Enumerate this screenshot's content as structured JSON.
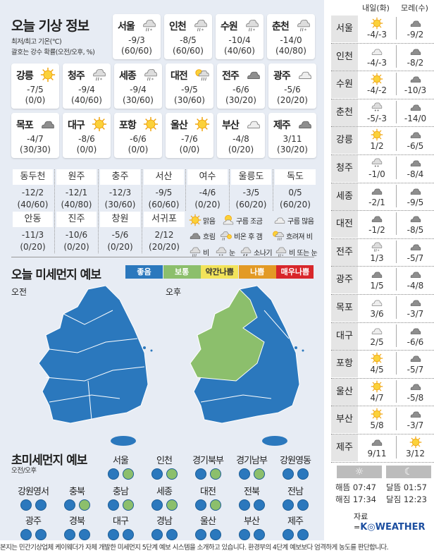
{
  "title": "오늘 기상 정보",
  "subtitle_1": "최저/최고 기온(℃)",
  "subtitle_2": "괄호는 강수 확률(오전/오후, %)",
  "cards": [
    {
      "name": "서울",
      "temp": "-9/3",
      "prob": "(60/60)",
      "icon": "rainsnow"
    },
    {
      "name": "인천",
      "temp": "-8/5",
      "prob": "(60/60)",
      "icon": "rainsnow"
    },
    {
      "name": "수원",
      "temp": "-10/4",
      "prob": "(40/60)",
      "icon": "rainsnow"
    },
    {
      "name": "춘천",
      "temp": "-14/0",
      "prob": "(40/80)",
      "icon": "rainsnow"
    },
    {
      "name": "강릉",
      "temp": "-7/5",
      "prob": "(0/0)",
      "icon": "sun"
    },
    {
      "name": "청주",
      "temp": "-9/4",
      "prob": "(40/60)",
      "icon": "rainsnow"
    },
    {
      "name": "세종",
      "temp": "-9/4",
      "prob": "(30/60)",
      "icon": "rainsnow"
    },
    {
      "name": "대전",
      "temp": "-9/5",
      "prob": "(30/60)",
      "icon": "sunrain"
    },
    {
      "name": "전주",
      "temp": "-6/6",
      "prob": "(30/20)",
      "icon": "cloud-dark"
    },
    {
      "name": "광주",
      "temp": "-5/6",
      "prob": "(20/20)",
      "icon": "cloud-light"
    },
    {
      "name": "목포",
      "temp": "-4/7",
      "prob": "(30/30)",
      "icon": "cloud-dark"
    },
    {
      "name": "대구",
      "temp": "-8/6",
      "prob": "(0/0)",
      "icon": "sun"
    },
    {
      "name": "포항",
      "temp": "-6/6",
      "prob": "(0/0)",
      "icon": "sun"
    },
    {
      "name": "울산",
      "temp": "-7/6",
      "prob": "(0/0)",
      "icon": "sun"
    },
    {
      "name": "부산",
      "temp": "-4/8",
      "prob": "(0/20)",
      "icon": "cloud-light"
    },
    {
      "name": "제주",
      "temp": "3/11",
      "prob": "(30/20)",
      "icon": "cloud-dark"
    }
  ],
  "small_cities": [
    {
      "name": "동두천",
      "temp": "-12/2",
      "prob": "(40/60)"
    },
    {
      "name": "원주",
      "temp": "-12/1",
      "prob": "(40/80)"
    },
    {
      "name": "충주",
      "temp": "-12/3",
      "prob": "(30/60)"
    },
    {
      "name": "서산",
      "temp": "-9/5",
      "prob": "(60/60)"
    },
    {
      "name": "여수",
      "temp": "-4/6",
      "prob": "(0/20)"
    },
    {
      "name": "울릉도",
      "temp": "-3/5",
      "prob": "(60/20)"
    },
    {
      "name": "독도",
      "temp": "0/5",
      "prob": "(60/20)"
    },
    {
      "name": "안동",
      "temp": "-11/3",
      "prob": "(0/20)"
    },
    {
      "name": "진주",
      "temp": "-10/6",
      "prob": "(0/20)"
    },
    {
      "name": "창원",
      "temp": "-5/6",
      "prob": "(0/20)"
    },
    {
      "name": "서귀포",
      "temp": "2/12",
      "prob": "(20/20)"
    }
  ],
  "icon_legend": [
    {
      "label": "맑음",
      "icon": "sun"
    },
    {
      "label": "구름 조금",
      "icon": "partly"
    },
    {
      "label": "구름 많음",
      "icon": "cloud-light"
    },
    {
      "label": "흐림",
      "icon": "cloud-dark"
    },
    {
      "label": "비온 후 갬",
      "icon": "rainsun"
    },
    {
      "label": "흐려져 비",
      "icon": "sunrain"
    },
    {
      "label": "비",
      "icon": "rain"
    },
    {
      "label": "눈",
      "icon": "snow"
    },
    {
      "label": "소나기",
      "icon": "shower"
    },
    {
      "label": "비 또는 눈",
      "icon": "rainsnow"
    }
  ],
  "dust": {
    "title": "오늘 미세먼지 예보",
    "levels": [
      {
        "label": "좋음",
        "color": "#2b78bd",
        "text": "#fff"
      },
      {
        "label": "보통",
        "color": "#8cbf6c",
        "text": "#fff"
      },
      {
        "label": "약간나쁨",
        "color": "#f2e35a",
        "text": "#333"
      },
      {
        "label": "나쁨",
        "color": "#e39a25",
        "text": "#fff"
      },
      {
        "label": "매우나쁨",
        "color": "#d8272b",
        "text": "#fff"
      }
    ],
    "am_label": "오전",
    "pm_label": "오후"
  },
  "pm25": {
    "title": "초미세먼지 예보",
    "subtitle": "오전/오후",
    "regions": [
      {
        "name": "서울",
        "am": "좋음",
        "pm": "보통"
      },
      {
        "name": "인천",
        "am": "좋음",
        "pm": "보통"
      },
      {
        "name": "경기북부",
        "am": "좋음",
        "pm": "보통"
      },
      {
        "name": "경기남부",
        "am": "좋음",
        "pm": "보통"
      },
      {
        "name": "강원영동",
        "am": "좋음",
        "pm": "좋음"
      },
      {
        "name": "강원영서",
        "am": "좋음",
        "pm": "좋음"
      },
      {
        "name": "충북",
        "am": "좋음",
        "pm": "보통"
      },
      {
        "name": "충남",
        "am": "좋음",
        "pm": "보통"
      },
      {
        "name": "세종",
        "am": "좋음",
        "pm": "보통"
      },
      {
        "name": "대전",
        "am": "좋음",
        "pm": "보통"
      },
      {
        "name": "전북",
        "am": "좋음",
        "pm": "좋음"
      },
      {
        "name": "전남",
        "am": "좋음",
        "pm": "좋음"
      },
      {
        "name": "광주",
        "am": "좋음",
        "pm": "좋음"
      },
      {
        "name": "경북",
        "am": "좋음",
        "pm": "좋음"
      },
      {
        "name": "대구",
        "am": "좋음",
        "pm": "좋음"
      },
      {
        "name": "경남",
        "am": "좋음",
        "pm": "좋음"
      },
      {
        "name": "울산",
        "am": "좋음",
        "pm": "좋음"
      },
      {
        "name": "부산",
        "am": "좋음",
        "pm": "좋음"
      },
      {
        "name": "제주",
        "am": "좋음",
        "pm": "좋음"
      }
    ]
  },
  "forecast": {
    "headers": [
      "내일(화)",
      "모레(수)"
    ],
    "rows": [
      {
        "name": "서울",
        "d1": "-4/-3",
        "i1": "sun",
        "d2": "-9/2",
        "i2": "cloud-dark"
      },
      {
        "name": "인천",
        "d1": "-4/-3",
        "i1": "cloud-light",
        "d2": "-8/2",
        "i2": "cloud-dark"
      },
      {
        "name": "수원",
        "d1": "-4/-2",
        "i1": "sun",
        "d2": "-10/3",
        "i2": "cloud-dark"
      },
      {
        "name": "춘천",
        "d1": "-5/-3",
        "i1": "snow",
        "d2": "-14/0",
        "i2": "cloud-dark"
      },
      {
        "name": "강릉",
        "d1": "1/2",
        "i1": "sun",
        "d2": "-6/5",
        "i2": "cloud-dark"
      },
      {
        "name": "청주",
        "d1": "-1/0",
        "i1": "snow",
        "d2": "-8/4",
        "i2": "cloud-dark"
      },
      {
        "name": "세종",
        "d1": "-2/1",
        "i1": "cloud-dark",
        "d2": "-9/5",
        "i2": "cloud-dark"
      },
      {
        "name": "대전",
        "d1": "-1/2",
        "i1": "cloud-dark",
        "d2": "-8/5",
        "i2": "cloud-dark"
      },
      {
        "name": "전주",
        "d1": "1/3",
        "i1": "rainsnow",
        "d2": "-5/7",
        "i2": "cloud-dark"
      },
      {
        "name": "광주",
        "d1": "1/5",
        "i1": "cloud-dark",
        "d2": "-4/8",
        "i2": "cloud-dark"
      },
      {
        "name": "목포",
        "d1": "3/6",
        "i1": "cloud-light",
        "d2": "-3/7",
        "i2": "cloud-dark"
      },
      {
        "name": "대구",
        "d1": "2/5",
        "i1": "cloud-light",
        "d2": "-6/6",
        "i2": "cloud-dark"
      },
      {
        "name": "포항",
        "d1": "4/5",
        "i1": "sun",
        "d2": "-5/7",
        "i2": "cloud-dark"
      },
      {
        "name": "울산",
        "d1": "4/7",
        "i1": "sun",
        "d2": "-5/8",
        "i2": "cloud-dark"
      },
      {
        "name": "부산",
        "d1": "5/8",
        "i1": "sun",
        "d2": "-3/7",
        "i2": "cloud-dark"
      },
      {
        "name": "제주",
        "d1": "9/11",
        "i1": "cloud-dark",
        "d2": "3/12",
        "i2": "sun"
      }
    ]
  },
  "sun_moon": {
    "sunrise": "해뜸 07:47",
    "sunset": "해짐 17:34",
    "moonrise": "달뜸 01:57",
    "moonset": "달짐 12:23"
  },
  "source_label": "자료=",
  "source_brand": "K◎WEATHER",
  "footer": "본지는 민간기상업체 케이웨더가 자체 개발한 미세먼지 5단계 예보 시스템을 소개하고 있습니다. 환경부의 4단계 예보보다 엄격하게 농도를 판단합니다."
}
